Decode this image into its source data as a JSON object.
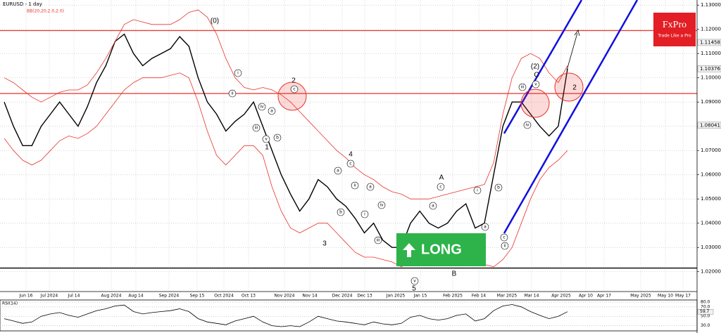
{
  "chart_data": {
    "type": "line",
    "title": "EURUSD - 1 day",
    "subtitle": "BB(20,20,2.0,2.0)",
    "ylim": [
      1.0118,
      1.1321
    ],
    "yticks": [
      {
        "value": 1.13,
        "label": "1.13000"
      },
      {
        "value": 1.12,
        "label": "1.12000"
      },
      {
        "value": 1.11,
        "label": "1.11000"
      },
      {
        "value": 1.1,
        "label": "1.10000"
      },
      {
        "value": 1.09,
        "label": "1.09000"
      },
      {
        "value": 1.08,
        "label": "1.08000"
      },
      {
        "value": 1.07,
        "label": "1.07000"
      },
      {
        "value": 1.06,
        "label": "1.06000"
      },
      {
        "value": 1.05,
        "label": "1.05000"
      },
      {
        "value": 1.04,
        "label": "1.04000"
      },
      {
        "value": 1.03,
        "label": "1.03000"
      },
      {
        "value": 1.02,
        "label": "1.02000"
      }
    ],
    "grid": true,
    "price_markers": [
      {
        "value": 1.11458,
        "label": "1.11458"
      },
      {
        "value": 1.10376,
        "label": "1.10376"
      },
      {
        "value": 1.08041,
        "label": "1.08041"
      }
    ],
    "x_labels": [
      "Jun 16",
      "Jul 2024",
      "Jul 14",
      "Aug 2024",
      "Aug 14",
      "Sep 2024",
      "Sep 15",
      "Oct 2024",
      "Oct 13",
      "Nov 2024",
      "Nov 14",
      "Dec 2024",
      "Dec 13",
      "Jan 2025",
      "Jan 15",
      "Feb 2025",
      "Feb 14",
      "Mar 2025",
      "Mar 14",
      "Apr 2025",
      "Apr 10",
      "Apr 17",
      "May 2025",
      "May 10",
      "May 17"
    ],
    "series": [
      {
        "color": "#000000",
        "values": [
          1.09,
          1.08,
          1.072,
          1.072,
          1.08,
          1.085,
          1.09,
          1.085,
          1.08,
          1.088,
          1.098,
          1.105,
          1.115,
          1.118,
          1.11,
          1.105,
          1.108,
          1.11,
          1.112,
          1.117,
          1.113,
          1.1,
          1.09,
          1.085,
          1.078,
          1.082,
          1.085,
          1.09,
          1.08,
          1.07,
          1.06,
          1.052,
          1.045,
          1.05,
          1.058,
          1.055,
          1.05,
          1.047,
          1.042,
          1.036,
          1.04,
          1.033,
          1.03,
          1.03,
          1.04,
          1.045,
          1.04,
          1.038,
          1.04,
          1.045,
          1.048,
          1.038,
          1.04,
          1.06,
          1.08,
          1.09,
          1.09,
          1.085,
          1.08,
          1.076,
          1.08,
          1.10376
        ]
      },
      {
        "color": "#e8332a",
        "values": [
          1.1,
          1.098,
          1.095,
          1.092,
          1.09,
          1.092,
          1.094,
          1.095,
          1.095,
          1.097,
          1.102,
          1.108,
          1.115,
          1.122,
          1.124,
          1.123,
          1.122,
          1.122,
          1.122,
          1.124,
          1.127,
          1.128,
          1.125,
          1.118,
          1.108,
          1.1,
          1.096,
          1.095,
          1.096,
          1.095,
          1.093,
          1.09,
          1.086,
          1.082,
          1.078,
          1.074,
          1.07,
          1.067,
          1.063,
          1.06,
          1.058,
          1.055,
          1.053,
          1.052,
          1.05,
          1.05,
          1.05,
          1.051,
          1.052,
          1.053,
          1.054,
          1.055,
          1.056,
          1.065,
          1.085,
          1.1,
          1.108,
          1.11,
          1.108,
          1.102,
          1.098,
          1.105
        ]
      },
      {
        "color": "#e8332a",
        "values": [
          1.075,
          1.07,
          1.066,
          1.064,
          1.066,
          1.07,
          1.074,
          1.076,
          1.075,
          1.077,
          1.08,
          1.085,
          1.09,
          1.095,
          1.098,
          1.1,
          1.1,
          1.1,
          1.101,
          1.102,
          1.1,
          1.09,
          1.078,
          1.068,
          1.064,
          1.068,
          1.072,
          1.072,
          1.068,
          1.055,
          1.045,
          1.038,
          1.036,
          1.038,
          1.04,
          1.04,
          1.036,
          1.032,
          1.028,
          1.026,
          1.026,
          1.025,
          1.024,
          1.022,
          1.024,
          1.026,
          1.025,
          1.024,
          1.026,
          1.027,
          1.028,
          1.026,
          1.023,
          1.022,
          1.025,
          1.03,
          1.04,
          1.05,
          1.058,
          1.063,
          1.066,
          1.07
        ]
      }
    ],
    "hlines": [
      {
        "value": 1.1195,
        "color": "#e8332a"
      },
      {
        "value": 1.0935,
        "color": "#e8332a"
      },
      {
        "value": 1.0215,
        "color": "#000000"
      }
    ],
    "annotations": [
      "(0)",
      "2",
      "1",
      "3",
      "4",
      "5",
      "A",
      "B",
      "C",
      "(2)",
      "2",
      "i",
      "ii",
      "iii",
      "iv",
      "v",
      "a",
      "b",
      "c",
      "a",
      "c",
      "ii",
      "a",
      "b",
      "i",
      "iv",
      "iii",
      "v",
      "c",
      "a",
      "i",
      "b",
      "a",
      "c",
      "ii",
      "iii",
      "v",
      "iv"
    ],
    "signal": "LONG",
    "logo": {
      "brand": "FxPro",
      "tagline": "Trade Like a Pro"
    },
    "rsi": {
      "label": "RSI(14)",
      "ylim": [
        19,
        84.7
      ],
      "yticks": [
        {
          "value": 80,
          "label": "80.0"
        },
        {
          "value": 70,
          "label": "70.0"
        },
        {
          "value": 50,
          "label": "50.0"
        },
        {
          "value": 30,
          "label": "30.0"
        }
      ],
      "current": {
        "value": 59.7,
        "label": "59.7"
      },
      "values": [
        45,
        40,
        35,
        38,
        50,
        55,
        58,
        52,
        48,
        55,
        62,
        66,
        72,
        74,
        60,
        55,
        58,
        60,
        62,
        66,
        60,
        45,
        38,
        35,
        32,
        40,
        45,
        50,
        38,
        30,
        28,
        30,
        28,
        38,
        50,
        45,
        40,
        38,
        35,
        32,
        38,
        34,
        32,
        35,
        48,
        52,
        45,
        42,
        45,
        52,
        55,
        40,
        45,
        62,
        72,
        75,
        70,
        60,
        52,
        45,
        50,
        59.7
      ]
    }
  }
}
